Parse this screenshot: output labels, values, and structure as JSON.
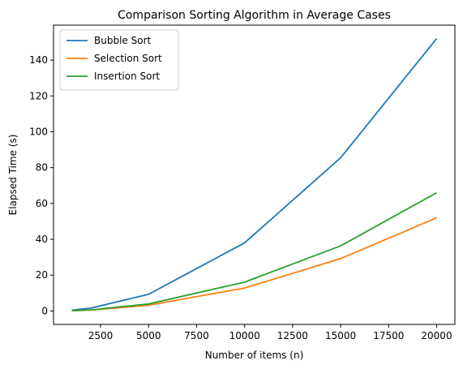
{
  "chart_data": {
    "type": "line",
    "title": "Comparison Sorting Algorithm in Average Cases",
    "xlabel": "Number of items (n)",
    "ylabel": "Elapsed Time (s)",
    "x": [
      1000,
      2000,
      5000,
      10000,
      15000,
      20000
    ],
    "xlim": [
      50,
      20950
    ],
    "ylim": [
      -7.5,
      159.5
    ],
    "xticks": [
      2500,
      5000,
      7500,
      10000,
      12500,
      15000,
      17500,
      20000
    ],
    "yticks": [
      0,
      20,
      40,
      60,
      80,
      100,
      120,
      140
    ],
    "grid": false,
    "legend_position": "top-left",
    "series": [
      {
        "name": "Bubble Sort",
        "color": "#1f77b4",
        "values": [
          0.4,
          1.6,
          9.3,
          38.0,
          85.5,
          152.0
        ]
      },
      {
        "name": "Selection Sort",
        "color": "#ff7f0e",
        "values": [
          0.1,
          0.5,
          3.2,
          12.8,
          29.2,
          52.0
        ]
      },
      {
        "name": "Insertion Sort",
        "color": "#2ca02c",
        "values": [
          0.2,
          0.6,
          3.9,
          16.1,
          36.3,
          66.0
        ]
      }
    ]
  }
}
